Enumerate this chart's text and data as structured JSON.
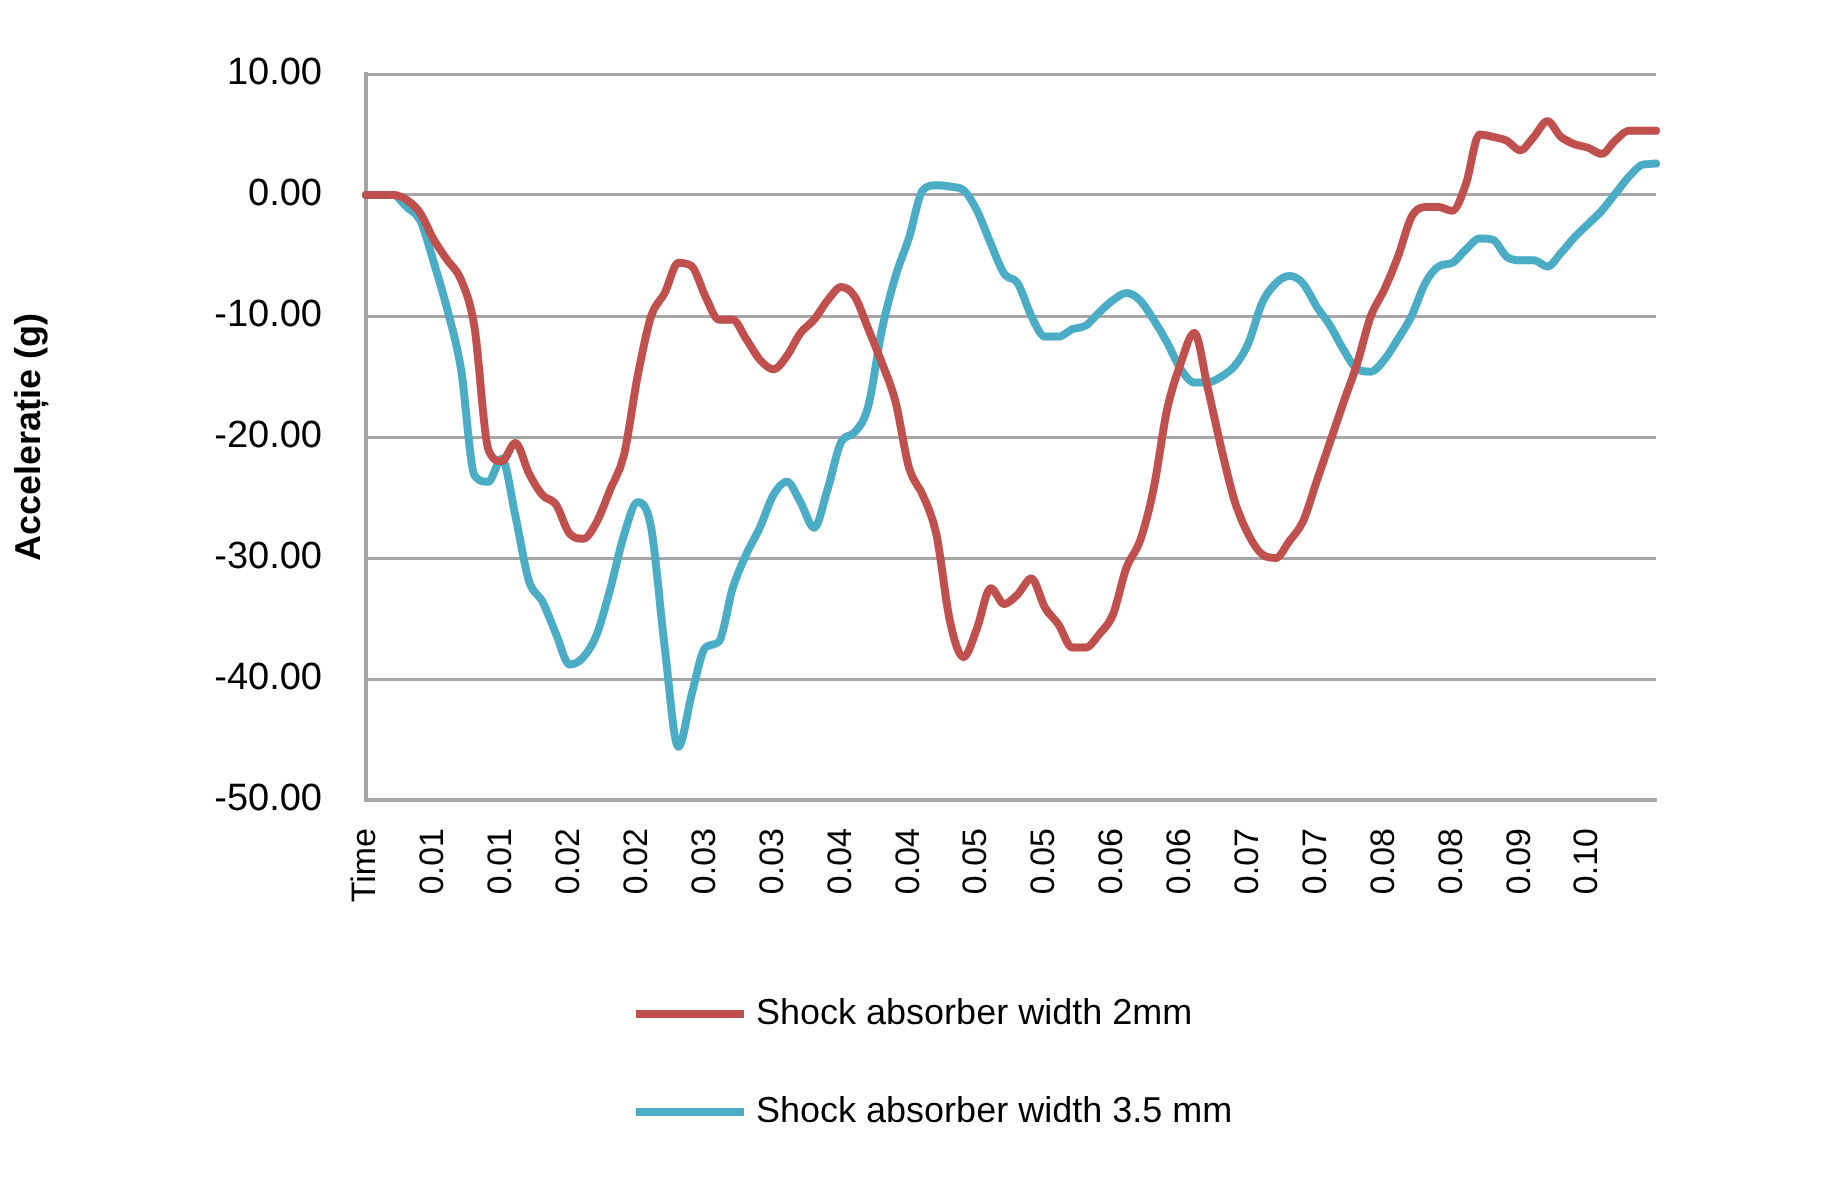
{
  "chart_data": {
    "type": "line",
    "ylabel": "Accelerație (g)",
    "categories": [
      "Time",
      null,
      null,
      null,
      null,
      "0.01",
      null,
      null,
      null,
      null,
      "0.01",
      null,
      null,
      null,
      null,
      "0.02",
      null,
      null,
      null,
      null,
      "0.02",
      null,
      null,
      null,
      null,
      "0.03",
      null,
      null,
      null,
      null,
      "0.03",
      null,
      null,
      null,
      null,
      "0.04",
      null,
      null,
      null,
      null,
      "0.04",
      null,
      null,
      null,
      null,
      "0.05",
      null,
      null,
      null,
      null,
      "0.05",
      null,
      null,
      null,
      null,
      "0.06",
      null,
      null,
      null,
      null,
      "0.06",
      null,
      null,
      null,
      null,
      "0.07",
      null,
      null,
      null,
      null,
      "0.07",
      null,
      null,
      null,
      null,
      "0.08",
      null,
      null,
      null,
      null,
      "0.08",
      null,
      null,
      null,
      null,
      "0.09",
      null,
      null,
      null,
      null,
      "0.10",
      null,
      null,
      null,
      null,
      null
    ],
    "series": [
      {
        "name": "Shock absorber width 2mm",
        "color": "#c0504d",
        "values": [
          0,
          0,
          0,
          -0.4,
          -1.5,
          -3.7,
          -5.4,
          -7,
          -11,
          -21,
          -22,
          -20.5,
          -23,
          -24.8,
          -25.6,
          -28,
          -28.4,
          -27,
          -24.3,
          -21.5,
          -15,
          -10,
          -8.1,
          -5.6,
          -5.9,
          -8.4,
          -10.3,
          -10.3,
          -11.9,
          -13.6,
          -14.4,
          -13.3,
          -11.4,
          -10.3,
          -8.7,
          -7.6,
          -8.4,
          -11.1,
          -13.9,
          -17.1,
          -22.6,
          -24.8,
          -28,
          -35.2,
          -38.2,
          -35.8,
          -32.5,
          -33.8,
          -33,
          -31.7,
          -34.1,
          -35.5,
          -37.4,
          -37.4,
          -36.3,
          -34.7,
          -30.8,
          -28.6,
          -24.3,
          -17.7,
          -13.9,
          -11.4,
          -16,
          -21,
          -25.4,
          -28.1,
          -29.7,
          -30,
          -28.6,
          -27,
          -23.7,
          -20.4,
          -17.1,
          -13.9,
          -10,
          -7.8,
          -5.1,
          -1.8,
          -1,
          -1,
          -1.3,
          0.9,
          5,
          4.8,
          4.5,
          3.7,
          4.8,
          6.1,
          4.8,
          4.2,
          3.9,
          3.4,
          4.5,
          5.3,
          5.3,
          5.3
        ]
      },
      {
        "name": "Shock absorber width 3.5 mm",
        "color": "#4bacc6",
        "values": [
          0,
          0,
          0,
          -1,
          -2.1,
          -5.6,
          -9.5,
          -14.4,
          -23.2,
          -23.7,
          -21.8,
          -26.5,
          -31.9,
          -33.6,
          -36.3,
          -38.8,
          -38.2,
          -36.3,
          -32.5,
          -28.1,
          -25.4,
          -27.5,
          -37.4,
          -45.6,
          -41.2,
          -37.4,
          -36.9,
          -32.5,
          -29.7,
          -27.5,
          -24.8,
          -23.7,
          -25.4,
          -27.5,
          -24.3,
          -20.4,
          -19.6,
          -17.4,
          -11.1,
          -6.7,
          -3.5,
          0.4,
          0.8,
          0.7,
          0.4,
          -1.3,
          -4,
          -6.5,
          -7.3,
          -10,
          -11.7,
          -11.7,
          -11.1,
          -10.8,
          -9.7,
          -8.7,
          -8.1,
          -8.7,
          -10.3,
          -12.2,
          -14.4,
          -15.5,
          -15.5,
          -15,
          -14.1,
          -12.2,
          -8.9,
          -7.3,
          -6.7,
          -7.3,
          -9.2,
          -10.8,
          -12.8,
          -14.4,
          -14.6,
          -13.6,
          -11.9,
          -10,
          -7.3,
          -5.9,
          -5.6,
          -4.5,
          -3.6,
          -3.7,
          -5.1,
          -5.4,
          -5.4,
          -5.9,
          -4.8,
          -3.5,
          -2.4,
          -1.3,
          0.1,
          1.5,
          2.5,
          2.6
        ]
      }
    ],
    "ylim": [
      -50,
      10
    ],
    "yticks": [
      {
        "value": 10,
        "label": "10.00"
      },
      {
        "value": 0,
        "label": "0.00"
      },
      {
        "value": -10,
        "label": "-10.00"
      },
      {
        "value": -20,
        "label": "-20.00"
      },
      {
        "value": -30,
        "label": "-30.00"
      },
      {
        "value": -40,
        "label": "-40.00"
      },
      {
        "value": -50,
        "label": "-50.00"
      }
    ],
    "grid": "y",
    "legend": "bottom",
    "marker": "none",
    "line_style": "solid"
  }
}
